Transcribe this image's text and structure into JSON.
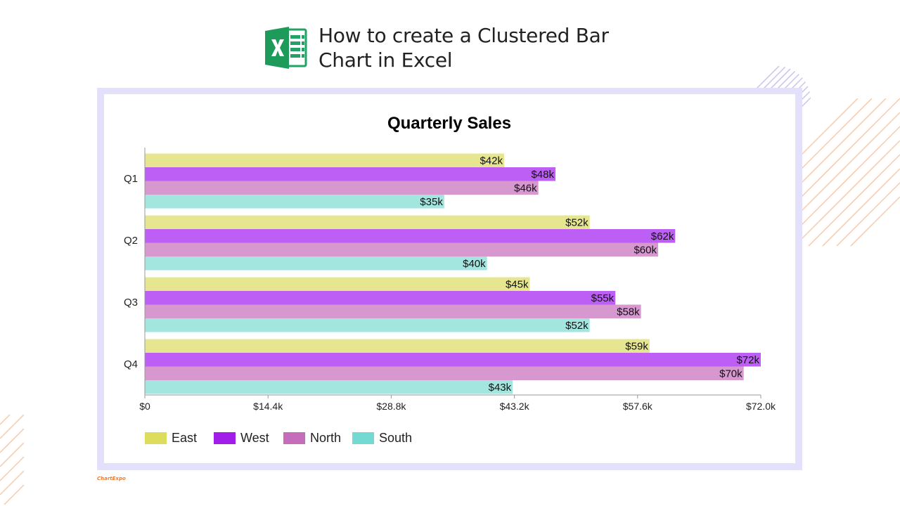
{
  "page": {
    "title_line1": "How to create a Clustered Bar",
    "title_line2": "Chart in Excel",
    "icon": "excel-icon",
    "brand": "ChartExpo"
  },
  "colors": {
    "excel_green": "#21a366",
    "frame": "#e2e0fb",
    "deco_orange": "#f8c9a8",
    "deco_purple": "#c8c4ef"
  },
  "chart_data": {
    "type": "bar",
    "orientation": "horizontal",
    "title": "Quarterly Sales",
    "categories": [
      "Q1",
      "Q2",
      "Q3",
      "Q4"
    ],
    "series": [
      {
        "name": "East",
        "color": "#e5e68f",
        "legend_color": "#dcdd5c",
        "values": [
          42,
          52,
          45,
          59
        ],
        "labels": [
          "$42k",
          "$52k",
          "$45k",
          "$59k"
        ]
      },
      {
        "name": "West",
        "color": "#bd5ef5",
        "legend_color": "#a11de8",
        "values": [
          48,
          62,
          55,
          72
        ],
        "labels": [
          "$48k",
          "$62k",
          "$55k",
          "$72k"
        ]
      },
      {
        "name": "North",
        "color": "#d698cf",
        "legend_color": "#c56dbb",
        "values": [
          46,
          60,
          58,
          70
        ],
        "labels": [
          "$46k",
          "$60k",
          "$58k",
          "$70k"
        ]
      },
      {
        "name": "South",
        "color": "#a3e6e0",
        "legend_color": "#74d9d0",
        "values": [
          35,
          40,
          52,
          43
        ],
        "labels": [
          "$35k",
          "$40k",
          "$52k",
          "$43k"
        ]
      }
    ],
    "x_ticks": [
      0,
      14.4,
      28.8,
      43.2,
      57.6,
      72.0
    ],
    "x_tick_labels": [
      "$0",
      "$14.4k",
      "$28.8k",
      "$43.2k",
      "$57.6k",
      "$72.0k"
    ],
    "xlim": [
      0,
      72
    ],
    "xlabel": "",
    "ylabel": "",
    "grid": false,
    "legend_position": "bottom-left"
  }
}
